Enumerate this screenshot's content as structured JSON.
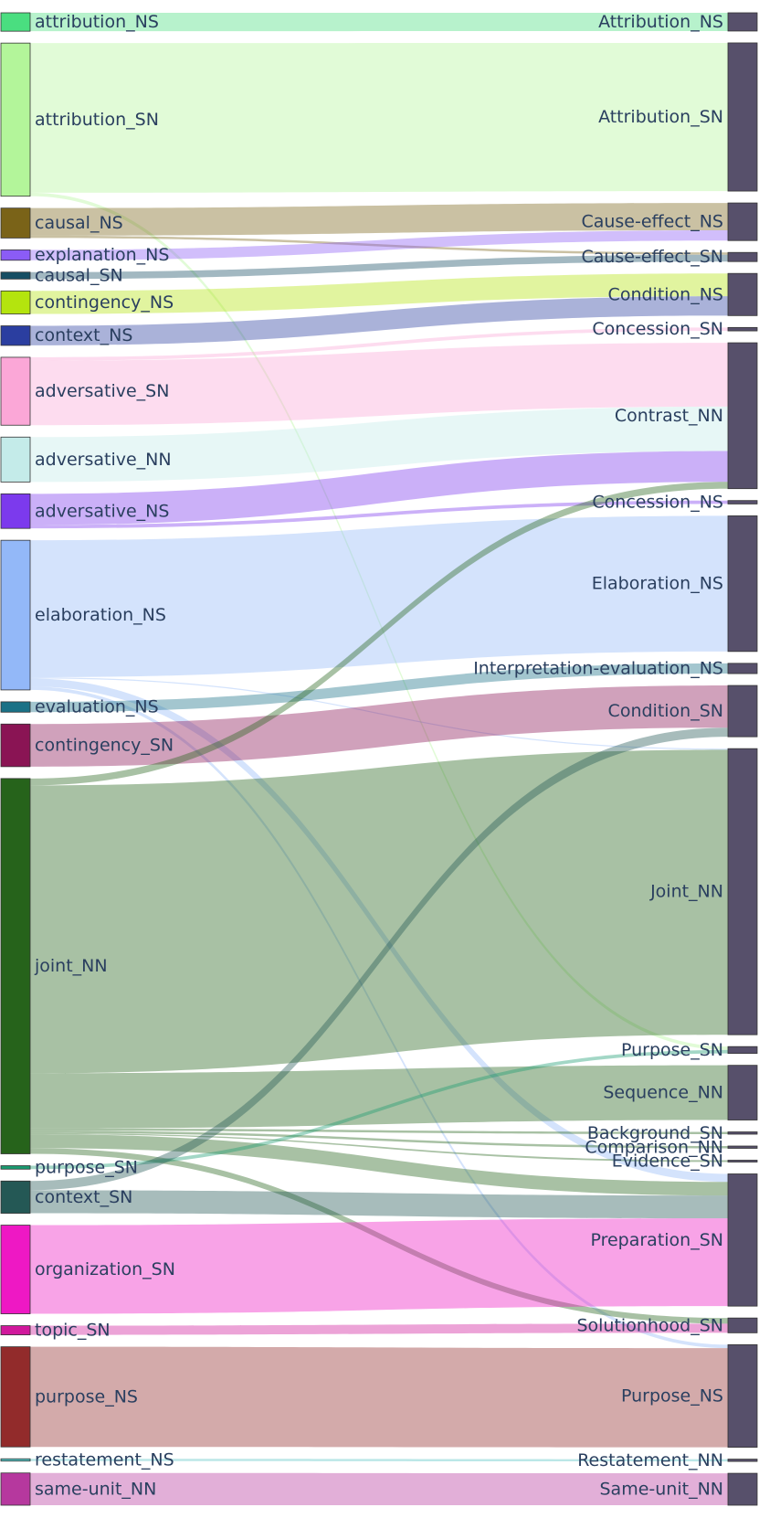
{
  "chart_data": {
    "type": "sankey",
    "title": "",
    "left_nodes": [
      {
        "id": "attribution_NS",
        "label": "attribution_NS",
        "color": "#4ade80"
      },
      {
        "id": "attribution_SN",
        "label": "attribution_SN",
        "color": "#b3f59a"
      },
      {
        "id": "causal_NS",
        "label": "causal_NS",
        "color": "#7a6318"
      },
      {
        "id": "explanation_NS",
        "label": "explanation_NS",
        "color": "#8b5cf6"
      },
      {
        "id": "causal_SN",
        "label": "causal_SN",
        "color": "#164e63"
      },
      {
        "id": "contingency_NS",
        "label": "contingency_NS",
        "color": "#b4e40e"
      },
      {
        "id": "context_NS",
        "label": "context_NS",
        "color": "#2b3ea0"
      },
      {
        "id": "adversative_SN",
        "label": "adversative_SN",
        "color": "#fba7d7"
      },
      {
        "id": "adversative_NN",
        "label": "adversative_NN",
        "color": "#c4ebe9"
      },
      {
        "id": "adversative_NS",
        "label": "adversative_NS",
        "color": "#7c3aed"
      },
      {
        "id": "elaboration_NS",
        "label": "elaboration_NS",
        "color": "#93b8f8"
      },
      {
        "id": "evaluation_NS",
        "label": "evaluation_NS",
        "color": "#1a7186"
      },
      {
        "id": "contingency_SN",
        "label": "contingency_SN",
        "color": "#8a1454"
      },
      {
        "id": "joint_NN",
        "label": "joint_NN",
        "color": "#26631b"
      },
      {
        "id": "purpose_SN",
        "label": "purpose_SN",
        "color": "#1a9a70"
      },
      {
        "id": "context_SN",
        "label": "context_SN",
        "color": "#245855"
      },
      {
        "id": "organization_SN",
        "label": "organization_SN",
        "color": "#ee18c4"
      },
      {
        "id": "topic_SN",
        "label": "topic_SN",
        "color": "#d0189c"
      },
      {
        "id": "purpose_NS",
        "label": "purpose_NS",
        "color": "#922b2b"
      },
      {
        "id": "restatement_NS",
        "label": "restatement_NS",
        "color": "#56c4c4"
      },
      {
        "id": "same-unit_NN",
        "label": "same-unit_NN",
        "color": "#b6389e"
      }
    ],
    "right_nodes": [
      {
        "id": "Attribution_NS",
        "label": "Attribution_NS"
      },
      {
        "id": "Attribution_SN",
        "label": "Attribution_SN"
      },
      {
        "id": "Cause-effect_NS",
        "label": "Cause-effect_NS"
      },
      {
        "id": "Cause-effect_SN",
        "label": "Cause-effect_SN"
      },
      {
        "id": "Condition_NS",
        "label": "Condition_NS"
      },
      {
        "id": "Concession_SN",
        "label": "Concession_SN"
      },
      {
        "id": "Contrast_NN",
        "label": "Contrast_NN"
      },
      {
        "id": "Concession_NS",
        "label": "Concession_NS"
      },
      {
        "id": "Elaboration_NS",
        "label": "Elaboration_NS"
      },
      {
        "id": "Interpretation-evaluation_NS",
        "label": "Interpretation-evaluation_NS"
      },
      {
        "id": "Condition_SN",
        "label": "Condition_SN"
      },
      {
        "id": "Joint_NN",
        "label": "Joint_NN"
      },
      {
        "id": "Purpose_SN",
        "label": "Purpose_SN"
      },
      {
        "id": "Sequence_NN",
        "label": "Sequence_NN"
      },
      {
        "id": "Background_SN",
        "label": "Background_SN"
      },
      {
        "id": "Comparison_NN",
        "label": "Comparison_NN"
      },
      {
        "id": "Evidence_SN",
        "label": "Evidence_SN"
      },
      {
        "id": "Preparation_SN",
        "label": "Preparation_SN"
      },
      {
        "id": "Solutionhood_SN",
        "label": "Solutionhood_SN"
      },
      {
        "id": "Purpose_NS",
        "label": "Purpose_NS"
      },
      {
        "id": "Restatement_NN",
        "label": "Restatement_NN"
      },
      {
        "id": "Same-unit_NN",
        "label": "Same-unit_NN"
      }
    ],
    "target_color": "#57506b",
    "links": [
      {
        "source": "attribution_NS",
        "target": "Attribution_NS",
        "value": 16
      },
      {
        "source": "attribution_SN",
        "target": "Attribution_SN",
        "value": 130
      },
      {
        "source": "attribution_SN",
        "target": "Purpose_SN",
        "value": 3
      },
      {
        "source": "causal_NS",
        "target": "Cause-effect_NS",
        "value": 24
      },
      {
        "source": "causal_NS",
        "target": "Cause-effect_SN",
        "value": 2
      },
      {
        "source": "explanation_NS",
        "target": "Cause-effect_NS",
        "value": 9
      },
      {
        "source": "causal_SN",
        "target": "Cause-effect_SN",
        "value": 6
      },
      {
        "source": "contingency_NS",
        "target": "Condition_NS",
        "value": 20
      },
      {
        "source": "context_NS",
        "target": "Condition_NS",
        "value": 17
      },
      {
        "source": "adversative_SN",
        "target": "Concession_SN",
        "value": 3
      },
      {
        "source": "adversative_SN",
        "target": "Contrast_NN",
        "value": 56
      },
      {
        "source": "adversative_NN",
        "target": "Contrast_NN",
        "value": 39
      },
      {
        "source": "adversative_NS",
        "target": "Contrast_NN",
        "value": 27
      },
      {
        "source": "adversative_NS",
        "target": "Concession_NS",
        "value": 3
      },
      {
        "source": "elaboration_NS",
        "target": "Elaboration_NS",
        "value": 119
      },
      {
        "source": "elaboration_NS",
        "target": "Joint_NN",
        "value": 1
      },
      {
        "source": "elaboration_NS",
        "target": "Preparation_SN",
        "value": 7
      },
      {
        "source": "elaboration_NS",
        "target": "Purpose_NS",
        "value": 3
      },
      {
        "source": "evaluation_NS",
        "target": "Interpretation-evaluation_NS",
        "value": 9
      },
      {
        "source": "contingency_SN",
        "target": "Condition_SN",
        "value": 37
      },
      {
        "source": "joint_NN",
        "target": "Contrast_NN",
        "value": 6
      },
      {
        "source": "joint_NN",
        "target": "Joint_NN",
        "value": 250
      },
      {
        "source": "joint_NN",
        "target": "Sequence_NN",
        "value": 48
      },
      {
        "source": "joint_NN",
        "target": "Background_SN",
        "value": 2
      },
      {
        "source": "joint_NN",
        "target": "Comparison_NN",
        "value": 2
      },
      {
        "source": "joint_NN",
        "target": "Evidence_SN",
        "value": 1
      },
      {
        "source": "joint_NN",
        "target": "Preparation_SN",
        "value": 12
      },
      {
        "source": "joint_NN",
        "target": "Solutionhood_SN",
        "value": 5
      },
      {
        "source": "purpose_SN",
        "target": "Purpose_SN",
        "value": 3
      },
      {
        "source": "context_SN",
        "target": "Condition_SN",
        "value": 8
      },
      {
        "source": "context_SN",
        "target": "Preparation_SN",
        "value": 20
      },
      {
        "source": "organization_SN",
        "target": "Preparation_SN",
        "value": 77
      },
      {
        "source": "topic_SN",
        "target": "Solutionhood_SN",
        "value": 8
      },
      {
        "source": "purpose_NS",
        "target": "Purpose_NS",
        "value": 87
      },
      {
        "source": "restatement_NS",
        "target": "Restatement_NN",
        "value": 2
      },
      {
        "source": "same-unit_NN",
        "target": "Same-unit_NN",
        "value": 28
      }
    ]
  }
}
